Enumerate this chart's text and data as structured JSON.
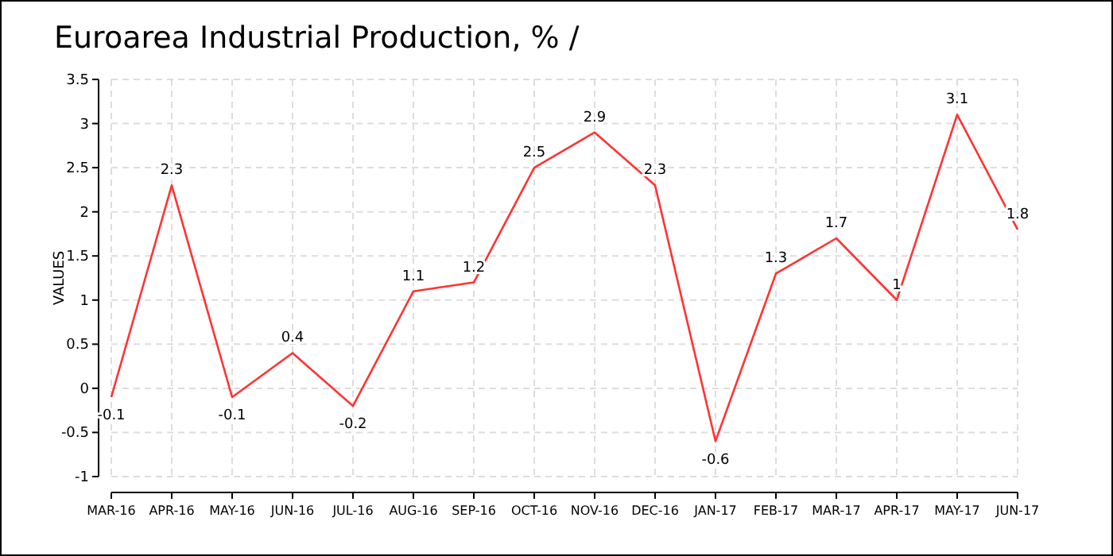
{
  "chart_data": {
    "type": "line",
    "title": "Euroarea Industrial Production, %  /",
    "ylabel": "VALUES",
    "categories": [
      "MAR-16",
      "APR-16",
      "MAY-16",
      "JUN-16",
      "JUL-16",
      "AUG-16",
      "SEP-16",
      "OCT-16",
      "NOV-16",
      "DEC-16",
      "JAN-17",
      "FEB-17",
      "MAR-17",
      "APR-17",
      "MAY-17",
      "JUN-17"
    ],
    "series": [
      {
        "color": "#ff3333",
        "values": [
          -0.1,
          2.3,
          -0.1,
          0.4,
          -0.2,
          1.1,
          1.2,
          2.5,
          2.9,
          2.3,
          -0.6,
          1.3,
          1.7,
          1,
          3.1,
          1.8
        ]
      }
    ],
    "ylim": [
      -1,
      3.5
    ],
    "yticks": [
      -1,
      -0.5,
      0,
      0.5,
      1,
      1.5,
      2,
      2.5,
      3,
      3.5
    ],
    "grid": true,
    "data_labels": true,
    "marker": "none",
    "line_style": "solid"
  }
}
